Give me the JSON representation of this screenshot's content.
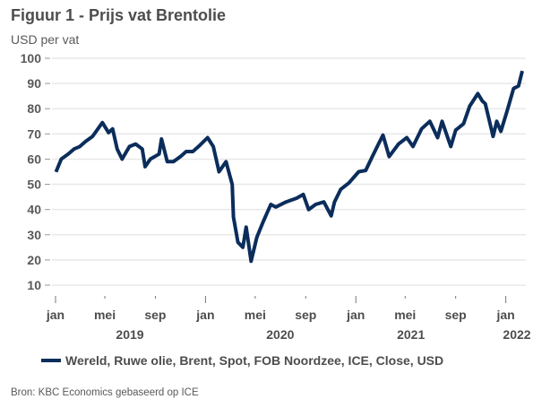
{
  "chart_data": {
    "type": "line",
    "title": "Figuur 1 - Prijs vat Brentolie",
    "ylabel": "USD per vat",
    "ylim": [
      10,
      100
    ],
    "yticks": [
      100,
      90,
      80,
      70,
      60,
      50,
      40,
      30,
      20,
      10
    ],
    "grid": true,
    "xticks": [
      {
        "date": "2019-01-01",
        "label": "jan",
        "year": "2019"
      },
      {
        "date": "2019-05-01",
        "label": "mei"
      },
      {
        "date": "2019-09-01",
        "label": "sep"
      },
      {
        "date": "2020-01-01",
        "label": "jan",
        "year": "2020"
      },
      {
        "date": "2020-05-01",
        "label": "mei"
      },
      {
        "date": "2020-09-01",
        "label": "sep"
      },
      {
        "date": "2021-01-01",
        "label": "jan",
        "year": "2021"
      },
      {
        "date": "2021-05-01",
        "label": "mei"
      },
      {
        "date": "2021-09-01",
        "label": "sep"
      },
      {
        "date": "2022-01-01",
        "label": "jan",
        "year": "2022"
      }
    ],
    "legend_position": "bottom",
    "series": [
      {
        "name": "Wereld, Ruwe olie, Brent, Spot, FOB Noordzee, ICE, Close, USD",
        "color": "#0b2d5b",
        "x": [
          "2019-01-02",
          "2019-01-15",
          "2019-02-01",
          "2019-02-15",
          "2019-03-01",
          "2019-03-15",
          "2019-04-01",
          "2019-04-25",
          "2019-05-10",
          "2019-05-20",
          "2019-05-31",
          "2019-06-12",
          "2019-06-30",
          "2019-07-15",
          "2019-07-31",
          "2019-08-07",
          "2019-08-20",
          "2019-09-10",
          "2019-09-16",
          "2019-09-30",
          "2019-10-15",
          "2019-11-01",
          "2019-11-15",
          "2019-12-01",
          "2019-12-15",
          "2020-01-06",
          "2020-01-20",
          "2020-02-03",
          "2020-02-20",
          "2020-03-06",
          "2020-03-09",
          "2020-03-20",
          "2020-04-01",
          "2020-04-09",
          "2020-04-21",
          "2020-05-05",
          "2020-05-20",
          "2020-06-08",
          "2020-06-20",
          "2020-07-15",
          "2020-08-10",
          "2020-08-26",
          "2020-09-08",
          "2020-09-25",
          "2020-10-15",
          "2020-11-02",
          "2020-11-10",
          "2020-11-25",
          "2020-12-15",
          "2021-01-08",
          "2021-01-25",
          "2021-02-10",
          "2021-02-25",
          "2021-03-08",
          "2021-03-23",
          "2021-04-15",
          "2021-05-05",
          "2021-05-20",
          "2021-06-10",
          "2021-06-30",
          "2021-07-19",
          "2021-07-30",
          "2021-08-20",
          "2021-09-01",
          "2021-09-20",
          "2021-10-05",
          "2021-10-25",
          "2021-11-05",
          "2021-11-12",
          "2021-11-26",
          "2021-12-01",
          "2021-12-10",
          "2021-12-20",
          "2022-01-04",
          "2022-01-20",
          "2022-02-01",
          "2022-02-10"
        ],
        "values": [
          54.9,
          60,
          62,
          64,
          65,
          67,
          69,
          74.5,
          70.5,
          72,
          64,
          60,
          65,
          66,
          64,
          57,
          60,
          62,
          68,
          59,
          59,
          61,
          63,
          63,
          65,
          68.5,
          65,
          55,
          59,
          50,
          37,
          27,
          25,
          33,
          19.5,
          29,
          35,
          42,
          41,
          43,
          44.5,
          46,
          40,
          42,
          43,
          37.5,
          43,
          48,
          50.5,
          55,
          55.5,
          61,
          66,
          69.5,
          61,
          66,
          68.5,
          65,
          72,
          75,
          68.5,
          75,
          65,
          71.5,
          74,
          81,
          86,
          83,
          82,
          72.5,
          69,
          75,
          71,
          79,
          88,
          89,
          95
        ]
      }
    ]
  },
  "source": "Bron: KBC Economics gebaseerd op ICE"
}
